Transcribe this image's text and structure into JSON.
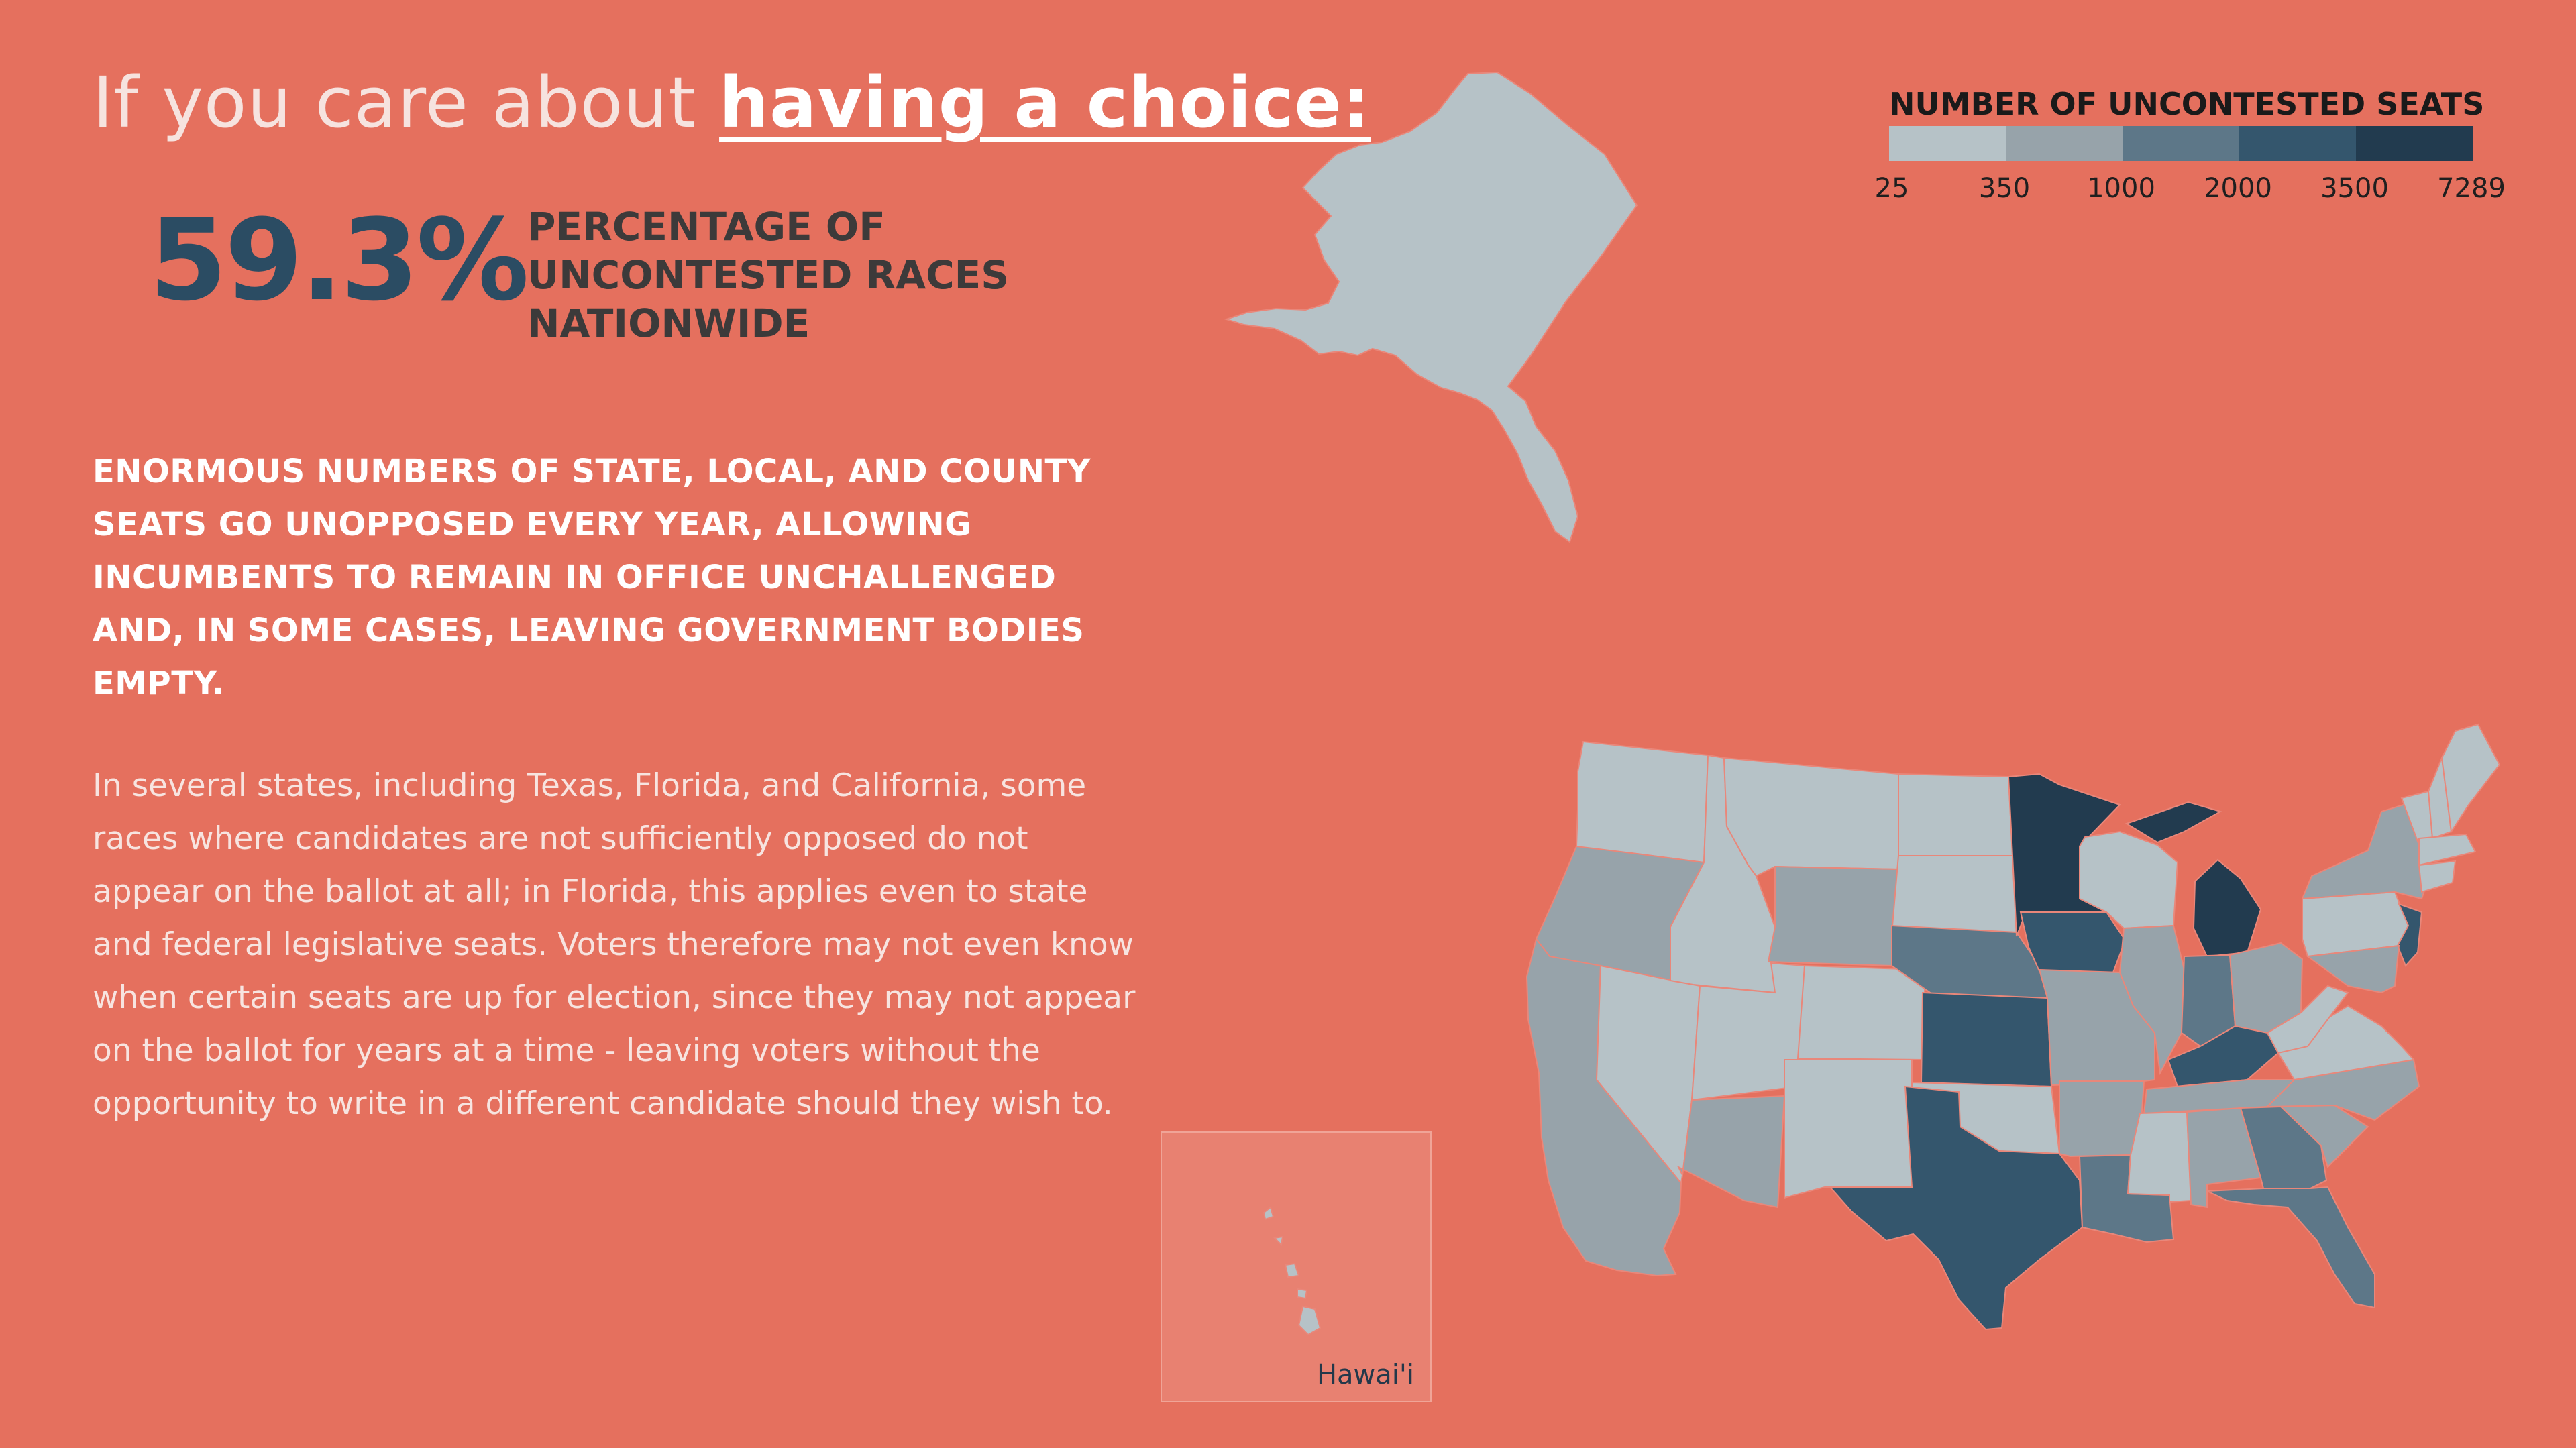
{
  "headline": {
    "prefix": "If you care about ",
    "emphasis": "having a choice:"
  },
  "stat": {
    "value": "59.3%",
    "label": "PERCENTAGE OF UNCONTESTED RACES NATIONWIDE"
  },
  "lead": "ENORMOUS NUMBERS OF STATE, LOCAL, AND COUNTY SEATS GO UNOPPOSED EVERY YEAR, ALLOWING INCUMBENTS TO REMAIN IN OFFICE UNCHALLENGED AND, IN SOME CASES, LEAVING GOVERNMENT BODIES EMPTY.",
  "body": "In several states, including Texas, Florida, and California, some races where candidates are not sufficiently opposed do not appear on the ballot at all; in Florida, this applies even to state and federal legislative seats. Voters therefore may not even know when certain seats are up for election, since they may not appear on the ballot for years at a time - leaving voters without the opportunity to write in a different candidate should they wish to.",
  "legend": {
    "title": "NUMBER OF UNCONTESTED SEATS",
    "ticks": [
      "25",
      "350",
      "1000",
      "2000",
      "3500",
      "7289"
    ],
    "colors": [
      "#b6c2c7",
      "#97a3aa",
      "#5d7788",
      "#34566d",
      "#223b4f"
    ]
  },
  "hawaii_label": "Hawai'i",
  "map": {
    "states": [
      {
        "name": "WA",
        "bin": 0
      },
      {
        "name": "OR",
        "bin": 1
      },
      {
        "name": "CA",
        "bin": 1
      },
      {
        "name": "ID",
        "bin": 0
      },
      {
        "name": "NV",
        "bin": 0
      },
      {
        "name": "MT",
        "bin": 0
      },
      {
        "name": "WY",
        "bin": 1
      },
      {
        "name": "UT",
        "bin": 0
      },
      {
        "name": "AZ",
        "bin": 1
      },
      {
        "name": "CO",
        "bin": 0
      },
      {
        "name": "NM",
        "bin": 0
      },
      {
        "name": "ND",
        "bin": 0
      },
      {
        "name": "SD",
        "bin": 0
      },
      {
        "name": "NE",
        "bin": 2
      },
      {
        "name": "KS",
        "bin": 3
      },
      {
        "name": "OK",
        "bin": 0
      },
      {
        "name": "TX",
        "bin": 3
      },
      {
        "name": "MN",
        "bin": 4
      },
      {
        "name": "IA",
        "bin": 3
      },
      {
        "name": "MO",
        "bin": 1
      },
      {
        "name": "AR",
        "bin": 1
      },
      {
        "name": "LA",
        "bin": 2
      },
      {
        "name": "WI",
        "bin": 0
      },
      {
        "name": "IL",
        "bin": 1
      },
      {
        "name": "MI",
        "bin": 4
      },
      {
        "name": "IN",
        "bin": 2
      },
      {
        "name": "OH",
        "bin": 1
      },
      {
        "name": "KY",
        "bin": 3
      },
      {
        "name": "TN",
        "bin": 1
      },
      {
        "name": "MS",
        "bin": 0
      },
      {
        "name": "AL",
        "bin": 1
      },
      {
        "name": "GA",
        "bin": 2
      },
      {
        "name": "FL",
        "bin": 2
      },
      {
        "name": "SC",
        "bin": 1
      },
      {
        "name": "NC",
        "bin": 1
      },
      {
        "name": "VA",
        "bin": 0
      },
      {
        "name": "WV",
        "bin": 0
      },
      {
        "name": "PA",
        "bin": 0
      },
      {
        "name": "NY",
        "bin": 1
      },
      {
        "name": "NJ",
        "bin": 3
      },
      {
        "name": "VT",
        "bin": 0
      },
      {
        "name": "NH",
        "bin": 0
      },
      {
        "name": "ME",
        "bin": 0
      },
      {
        "name": "MA",
        "bin": 0
      },
      {
        "name": "CT",
        "bin": 0
      },
      {
        "name": "MD",
        "bin": 1
      },
      {
        "name": "AK",
        "bin": 0
      },
      {
        "name": "HI",
        "bin": 0
      }
    ]
  }
}
